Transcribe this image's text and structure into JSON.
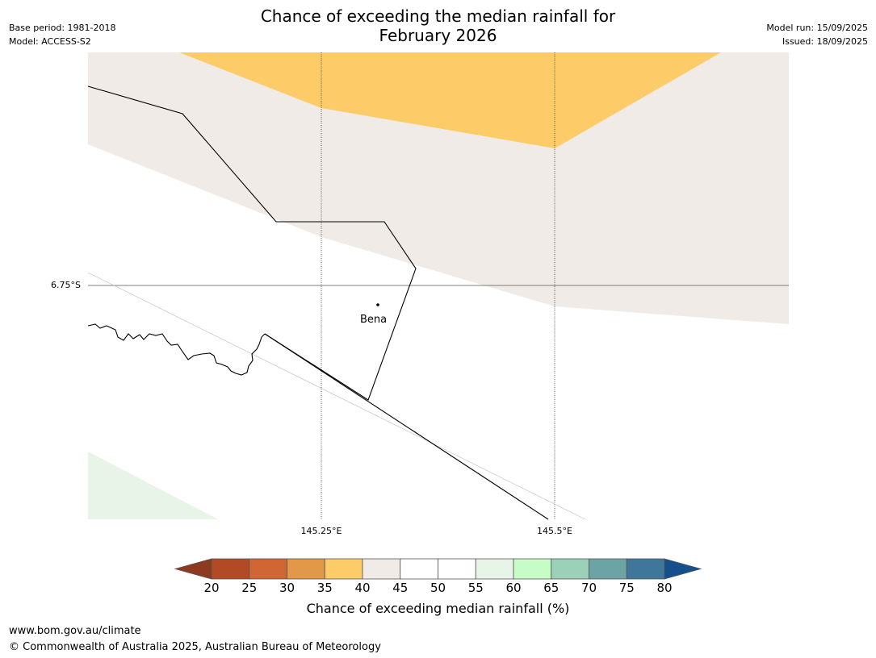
{
  "title": {
    "line1": "Chance of exceeding the median rainfall for",
    "line2": "February 2026"
  },
  "meta": {
    "base_period": "Base period: 1981-2018",
    "model": "Model: ACCESS-S2",
    "model_run": "Model run: 15/09/2025",
    "issued": "Issued: 18/09/2025"
  },
  "map": {
    "latitude_labels": [
      "6.75°S"
    ],
    "longitude_labels": [
      "145.25°E",
      "145.5°E"
    ],
    "place": {
      "name": "Bena"
    },
    "regions": [
      {
        "category": "35-40",
        "color": "#fdcb68"
      },
      {
        "category": "40-45",
        "color": "#f0ebe6"
      },
      {
        "category": "55-60",
        "color": "#e8f4e8"
      }
    ]
  },
  "colorbar": {
    "title": "Chance of exceeding median rainfall (%)",
    "ticks": [
      "20",
      "25",
      "30",
      "35",
      "40",
      "45",
      "50",
      "55",
      "60",
      "65",
      "70",
      "75",
      "80"
    ],
    "under_color": "#8e3a1f",
    "over_color": "#154f8c",
    "colors": [
      "#b34a26",
      "#cf6633",
      "#e39748",
      "#fdcb68",
      "#f0ebe6",
      "#ffffff",
      "#ffffff",
      "#e8f4e8",
      "#c7fcc7",
      "#9bd0b9",
      "#6ca3a4",
      "#3e7799"
    ]
  },
  "footer": {
    "url": "www.bom.gov.au/climate",
    "copyright": "© Commonwealth of Australia 2025, Australian Bureau of Meteorology"
  }
}
